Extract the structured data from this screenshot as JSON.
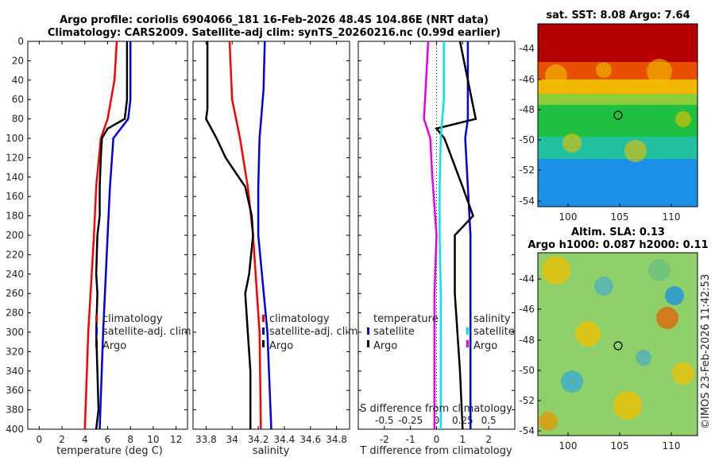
{
  "title_line1": "Argo profile: coriolis 6904066_181 16-Feb-2026 48.4S 104.86E (NRT data)",
  "title_line2": "Climatology: CARS2009. Satellite-adj clim: synTS_20260216.nc (0.99d earlier)",
  "map1_title": "sat. SST: 8.08 Argo: 7.64",
  "map2_title1": "Altim. SLA: 0.13",
  "map2_title2": "Argo h1000: 0.087 h2000: 0.11",
  "watermark": "©IMOS 23-Feb-2026 11:42:53",
  "colors": {
    "climatology": "#ff0000",
    "satellite": "#0000e6",
    "argo": "#000000",
    "s_sat": "#00e6e6",
    "s_argo": "#e600e6",
    "dotted": "#000000"
  },
  "map_ticks": {
    "lat": [
      "-44",
      "-46",
      "-48",
      "-50",
      "-52",
      "-54"
    ],
    "lon": [
      "100",
      "105",
      "110"
    ]
  },
  "chart_data": [
    {
      "type": "line",
      "name": "temperature-profile",
      "xlabel": "temperature (deg C)",
      "ylabel": "",
      "xlim": [
        -1,
        13
      ],
      "ylim": [
        400,
        0
      ],
      "xticks": [
        "0",
        "2",
        "4",
        "6",
        "8",
        "10",
        "12"
      ],
      "yticks": [
        "0",
        "20",
        "40",
        "60",
        "80",
        "100",
        "120",
        "140",
        "160",
        "180",
        "200",
        "220",
        "240",
        "260",
        "280",
        "300",
        "320",
        "340",
        "360",
        "380",
        "400"
      ],
      "legend": [
        "climatology",
        "satellite-adj. clim",
        "Argo"
      ],
      "series": [
        {
          "name": "climatology",
          "depth": [
            0,
            40,
            80,
            100,
            150,
            200,
            300,
            400
          ],
          "values": [
            6.8,
            6.6,
            6.0,
            5.4,
            5.0,
            4.8,
            4.3,
            4.0
          ]
        },
        {
          "name": "satellite-adj. clim",
          "depth": [
            0,
            60,
            80,
            100,
            150,
            200,
            300,
            400
          ],
          "values": [
            8.0,
            8.0,
            7.8,
            6.5,
            6.2,
            6.0,
            5.6,
            5.3
          ]
        },
        {
          "name": "Argo",
          "depth": [
            0,
            60,
            80,
            90,
            100,
            120,
            150,
            180,
            200,
            240,
            260,
            300,
            340,
            380,
            400
          ],
          "values": [
            7.7,
            7.7,
            7.5,
            6.0,
            5.5,
            5.4,
            5.3,
            5.3,
            5.1,
            5.0,
            5.1,
            5.0,
            5.1,
            5.2,
            5.0
          ]
        }
      ]
    },
    {
      "type": "line",
      "name": "salinity-profile",
      "xlabel": "salinity",
      "xlim": [
        33.7,
        34.9
      ],
      "ylim": [
        400,
        0
      ],
      "xticks": [
        "33.8",
        "34",
        "34.2",
        "34.4",
        "34.6",
        "34.8"
      ],
      "legend": [
        "climatology",
        "satellite-adj. clim",
        "Argo"
      ],
      "series": [
        {
          "name": "climatology",
          "depth": [
            0,
            60,
            100,
            150,
            200,
            300,
            400
          ],
          "values": [
            33.98,
            34.0,
            34.06,
            34.12,
            34.16,
            34.21,
            34.22
          ],
          "_": ""
        },
        {
          "name": "satellite-adj. clim",
          "depth": [
            0,
            50,
            100,
            150,
            200,
            300,
            400
          ],
          "values": [
            34.25,
            34.24,
            34.21,
            34.2,
            34.2,
            34.27,
            34.3
          ]
        },
        {
          "name": "Argo",
          "depth": [
            0,
            70,
            80,
            100,
            120,
            150,
            180,
            200,
            240,
            260,
            300,
            340,
            400
          ],
          "values": [
            33.81,
            33.81,
            33.8,
            33.88,
            33.95,
            34.1,
            34.15,
            34.16,
            34.13,
            34.1,
            34.12,
            34.14,
            34.14
          ]
        }
      ]
    },
    {
      "type": "line",
      "name": "difference-profile",
      "xlabel": "T difference from climatology",
      "x2label": "S difference from climatology",
      "xlim": [
        -3,
        3
      ],
      "x2lim": [
        -0.75,
        0.75
      ],
      "ylim": [
        400,
        0
      ],
      "xticks": [
        "-2",
        "-1",
        "0",
        "1",
        "2"
      ],
      "x2ticks": [
        "-0.5",
        "-0.25",
        "0",
        "0.25",
        "0.5"
      ],
      "legend_t": [
        "temperature",
        "satellite",
        "Argo"
      ],
      "legend_s": [
        "salinity",
        "satellite",
        "Argo"
      ],
      "series": [
        {
          "name": "T satellite",
          "axis": "T",
          "depth": [
            0,
            80,
            100,
            200,
            300,
            400
          ],
          "values": [
            1.2,
            1.2,
            1.1,
            1.3,
            1.3,
            1.3
          ]
        },
        {
          "name": "T Argo",
          "axis": "T",
          "depth": [
            0,
            80,
            90,
            100,
            150,
            180,
            200,
            260,
            340,
            400
          ],
          "values": [
            0.9,
            1.5,
            0.0,
            0.3,
            1.0,
            1.4,
            0.7,
            0.7,
            0.9,
            1.0
          ]
        },
        {
          "name": "S satellite",
          "axis": "S",
          "depth": [
            0,
            60,
            100,
            150,
            200,
            260,
            400
          ],
          "values": [
            0.07,
            0.07,
            0.04,
            0.03,
            0.03,
            0.04,
            0.04
          ]
        },
        {
          "name": "S Argo",
          "axis": "S",
          "depth": [
            0,
            80,
            100,
            140,
            200,
            260,
            400
          ],
          "values": [
            -0.08,
            -0.12,
            -0.06,
            -0.04,
            0.0,
            -0.02,
            -0.02
          ]
        }
      ]
    }
  ]
}
